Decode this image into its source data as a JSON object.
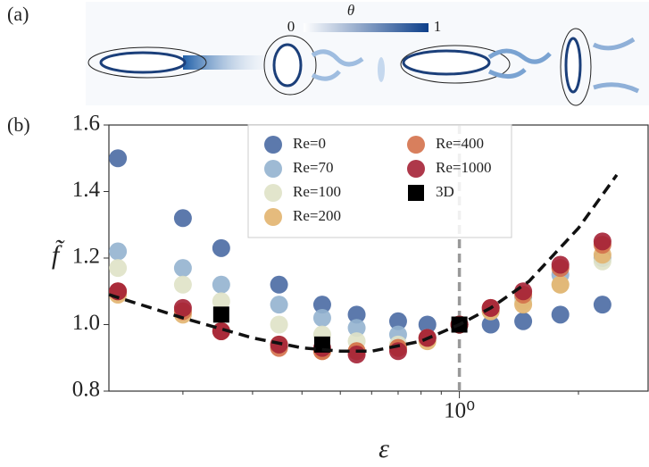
{
  "panel_a": {
    "label": "(a)",
    "colorbar_label": "θ",
    "colorbar_ticks": [
      0,
      1
    ]
  },
  "chart_data": {
    "type": "scatter",
    "label": "(b)",
    "x_label": "ε",
    "y_label": "f̃",
    "xlog": true,
    "xlim": [
      0.13,
      3
    ],
    "ylim": [
      0.8,
      1.6
    ],
    "xticks": [
      {
        "value": 1,
        "label": "10⁰"
      }
    ],
    "xminor_ticks": [
      0.2,
      0.3,
      0.4,
      0.5,
      0.6,
      0.7,
      0.8,
      0.9,
      2
    ],
    "yticks": [
      0.8,
      {
        "value": 1,
        "label": "1.0"
      },
      1.2,
      1.4,
      1.6
    ],
    "vline_x": 1,
    "vline_color": "#999999",
    "legend": "upper center",
    "series": [
      {
        "name": "Re=0",
        "color": "#4a6aa3",
        "x": [
          0.137,
          0.2,
          0.25,
          0.35,
          0.45,
          0.55,
          0.7,
          0.83,
          1,
          1.2,
          1.45,
          1.8,
          2.3
        ],
        "values": [
          1.5,
          1.32,
          1.23,
          1.12,
          1.06,
          1.03,
          1.01,
          1.0,
          1.0,
          1.0,
          1.01,
          1.03,
          1.06
        ]
      },
      {
        "name": "Re=70",
        "color": "#93b3cf",
        "x": [
          0.137,
          0.2,
          0.25,
          0.35,
          0.45,
          0.55,
          0.7,
          0.83,
          1,
          1.2,
          1.45,
          1.8,
          2.3
        ],
        "values": [
          1.22,
          1.17,
          1.12,
          1.06,
          1.02,
          0.99,
          0.97,
          0.96,
          1.0,
          1.04,
          1.08,
          1.15,
          1.2
        ]
      },
      {
        "name": "Re=100",
        "color": "#dfe2c6",
        "x": [
          0.137,
          0.2,
          0.25,
          0.35,
          0.45,
          0.55,
          0.7,
          0.83,
          1,
          1.2,
          1.45,
          1.8,
          2.3
        ],
        "values": [
          1.17,
          1.12,
          1.07,
          1.0,
          0.97,
          0.95,
          0.94,
          0.96,
          1.0,
          1.04,
          1.07,
          1.12,
          1.19
        ]
      },
      {
        "name": "Re=200",
        "color": "#e2b46f",
        "x": [
          0.137,
          0.2,
          0.25,
          0.35,
          0.45,
          0.55,
          0.7,
          0.83,
          1,
          1.2,
          1.45,
          1.8,
          2.3
        ],
        "values": [
          1.09,
          1.03,
          0.98,
          0.94,
          0.92,
          0.92,
          0.93,
          0.95,
          1.0,
          1.04,
          1.06,
          1.12,
          1.21
        ]
      },
      {
        "name": "Re=400",
        "color": "#d4714b",
        "x": [
          0.137,
          0.2,
          0.25,
          0.35,
          0.45,
          0.55,
          0.7,
          0.83,
          1,
          1.2,
          1.45,
          1.8,
          2.3
        ],
        "values": [
          1.1,
          1.04,
          0.98,
          0.93,
          0.92,
          0.92,
          0.93,
          0.96,
          1.0,
          1.05,
          1.09,
          1.17,
          1.24
        ]
      },
      {
        "name": "Re=1000",
        "color": "#a52236",
        "x": [
          0.137,
          0.2,
          0.25,
          0.35,
          0.45,
          0.55,
          0.7,
          0.83,
          1,
          1.2,
          1.45,
          1.8,
          2.3
        ],
        "values": [
          1.1,
          1.05,
          0.98,
          0.94,
          0.93,
          0.91,
          0.92,
          0.96,
          1.0,
          1.05,
          1.1,
          1.18,
          1.25
        ]
      },
      {
        "name": "3D",
        "color": "#000000",
        "marker": "square",
        "x": [
          0.25,
          0.45,
          1
        ],
        "values": [
          1.03,
          0.94,
          1.0
        ]
      },
      {
        "color": "#111111",
        "style": "dashed-line",
        "x": [
          0.13,
          0.2,
          0.3,
          0.4,
          0.5,
          0.6,
          0.8,
          1.0,
          1.2,
          1.5,
          2.0,
          2.5
        ],
        "values": [
          1.09,
          1.02,
          0.96,
          0.93,
          0.92,
          0.92,
          0.95,
          1.0,
          1.05,
          1.13,
          1.29,
          1.45
        ]
      }
    ]
  }
}
